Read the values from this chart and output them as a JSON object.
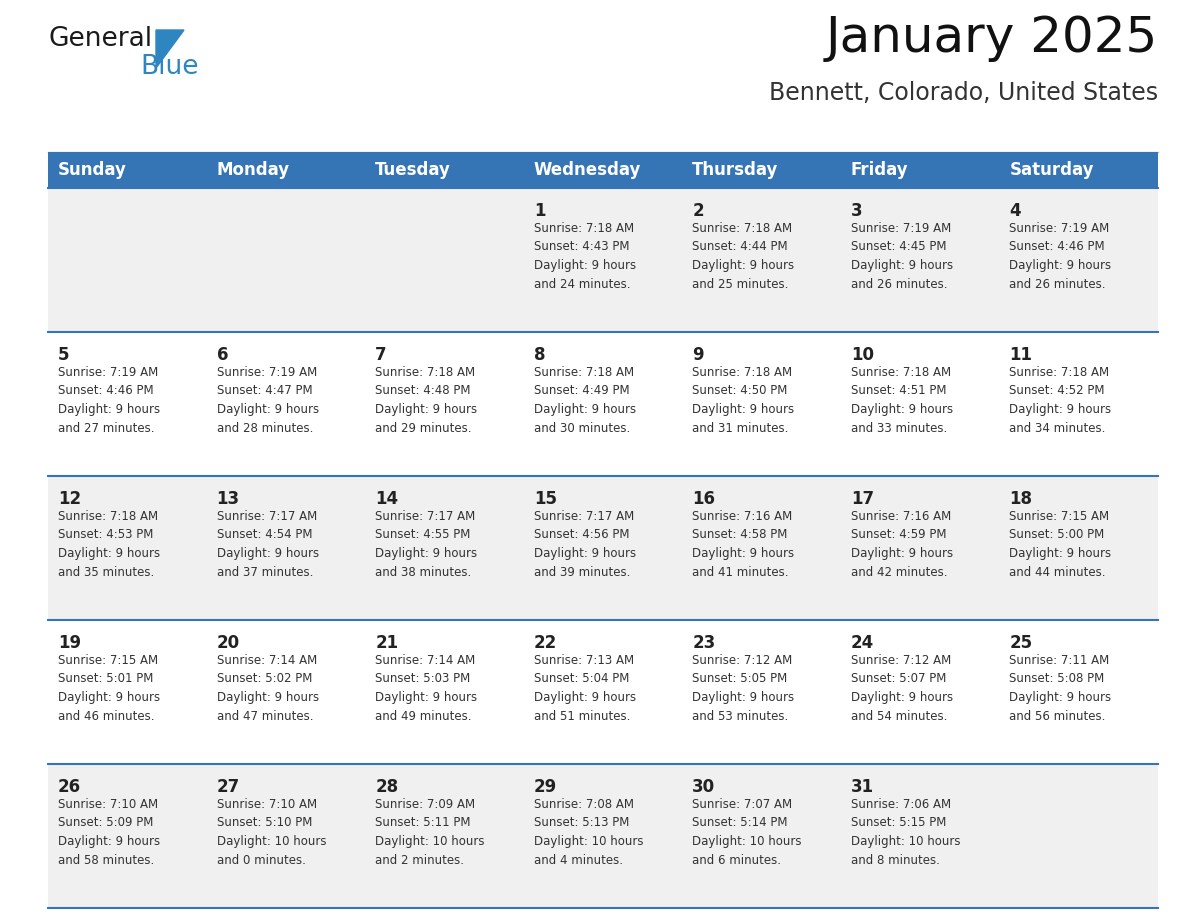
{
  "title": "January 2025",
  "subtitle": "Bennett, Colorado, United States",
  "header_bg_color": "#3575B5",
  "header_text_color": "#FFFFFF",
  "cell_bg_even": "#F0F0F0",
  "cell_bg_odd": "#FFFFFF",
  "cell_text_color": "#333333",
  "day_num_color": "#222222",
  "line_color_blue": "#3575B5",
  "line_color_gray": "#BBBBBB",
  "logo_color1": "#1A1A1A",
  "logo_color2": "#2E86C1",
  "days_of_week": [
    "Sunday",
    "Monday",
    "Tuesday",
    "Wednesday",
    "Thursday",
    "Friday",
    "Saturday"
  ],
  "weeks": [
    [
      {
        "day": 0,
        "info": ""
      },
      {
        "day": 0,
        "info": ""
      },
      {
        "day": 0,
        "info": ""
      },
      {
        "day": 1,
        "info": "Sunrise: 7:18 AM\nSunset: 4:43 PM\nDaylight: 9 hours\nand 24 minutes."
      },
      {
        "day": 2,
        "info": "Sunrise: 7:18 AM\nSunset: 4:44 PM\nDaylight: 9 hours\nand 25 minutes."
      },
      {
        "day": 3,
        "info": "Sunrise: 7:19 AM\nSunset: 4:45 PM\nDaylight: 9 hours\nand 26 minutes."
      },
      {
        "day": 4,
        "info": "Sunrise: 7:19 AM\nSunset: 4:46 PM\nDaylight: 9 hours\nand 26 minutes."
      }
    ],
    [
      {
        "day": 5,
        "info": "Sunrise: 7:19 AM\nSunset: 4:46 PM\nDaylight: 9 hours\nand 27 minutes."
      },
      {
        "day": 6,
        "info": "Sunrise: 7:19 AM\nSunset: 4:47 PM\nDaylight: 9 hours\nand 28 minutes."
      },
      {
        "day": 7,
        "info": "Sunrise: 7:18 AM\nSunset: 4:48 PM\nDaylight: 9 hours\nand 29 minutes."
      },
      {
        "day": 8,
        "info": "Sunrise: 7:18 AM\nSunset: 4:49 PM\nDaylight: 9 hours\nand 30 minutes."
      },
      {
        "day": 9,
        "info": "Sunrise: 7:18 AM\nSunset: 4:50 PM\nDaylight: 9 hours\nand 31 minutes."
      },
      {
        "day": 10,
        "info": "Sunrise: 7:18 AM\nSunset: 4:51 PM\nDaylight: 9 hours\nand 33 minutes."
      },
      {
        "day": 11,
        "info": "Sunrise: 7:18 AM\nSunset: 4:52 PM\nDaylight: 9 hours\nand 34 minutes."
      }
    ],
    [
      {
        "day": 12,
        "info": "Sunrise: 7:18 AM\nSunset: 4:53 PM\nDaylight: 9 hours\nand 35 minutes."
      },
      {
        "day": 13,
        "info": "Sunrise: 7:17 AM\nSunset: 4:54 PM\nDaylight: 9 hours\nand 37 minutes."
      },
      {
        "day": 14,
        "info": "Sunrise: 7:17 AM\nSunset: 4:55 PM\nDaylight: 9 hours\nand 38 minutes."
      },
      {
        "day": 15,
        "info": "Sunrise: 7:17 AM\nSunset: 4:56 PM\nDaylight: 9 hours\nand 39 minutes."
      },
      {
        "day": 16,
        "info": "Sunrise: 7:16 AM\nSunset: 4:58 PM\nDaylight: 9 hours\nand 41 minutes."
      },
      {
        "day": 17,
        "info": "Sunrise: 7:16 AM\nSunset: 4:59 PM\nDaylight: 9 hours\nand 42 minutes."
      },
      {
        "day": 18,
        "info": "Sunrise: 7:15 AM\nSunset: 5:00 PM\nDaylight: 9 hours\nand 44 minutes."
      }
    ],
    [
      {
        "day": 19,
        "info": "Sunrise: 7:15 AM\nSunset: 5:01 PM\nDaylight: 9 hours\nand 46 minutes."
      },
      {
        "day": 20,
        "info": "Sunrise: 7:14 AM\nSunset: 5:02 PM\nDaylight: 9 hours\nand 47 minutes."
      },
      {
        "day": 21,
        "info": "Sunrise: 7:14 AM\nSunset: 5:03 PM\nDaylight: 9 hours\nand 49 minutes."
      },
      {
        "day": 22,
        "info": "Sunrise: 7:13 AM\nSunset: 5:04 PM\nDaylight: 9 hours\nand 51 minutes."
      },
      {
        "day": 23,
        "info": "Sunrise: 7:12 AM\nSunset: 5:05 PM\nDaylight: 9 hours\nand 53 minutes."
      },
      {
        "day": 24,
        "info": "Sunrise: 7:12 AM\nSunset: 5:07 PM\nDaylight: 9 hours\nand 54 minutes."
      },
      {
        "day": 25,
        "info": "Sunrise: 7:11 AM\nSunset: 5:08 PM\nDaylight: 9 hours\nand 56 minutes."
      }
    ],
    [
      {
        "day": 26,
        "info": "Sunrise: 7:10 AM\nSunset: 5:09 PM\nDaylight: 9 hours\nand 58 minutes."
      },
      {
        "day": 27,
        "info": "Sunrise: 7:10 AM\nSunset: 5:10 PM\nDaylight: 10 hours\nand 0 minutes."
      },
      {
        "day": 28,
        "info": "Sunrise: 7:09 AM\nSunset: 5:11 PM\nDaylight: 10 hours\nand 2 minutes."
      },
      {
        "day": 29,
        "info": "Sunrise: 7:08 AM\nSunset: 5:13 PM\nDaylight: 10 hours\nand 4 minutes."
      },
      {
        "day": 30,
        "info": "Sunrise: 7:07 AM\nSunset: 5:14 PM\nDaylight: 10 hours\nand 6 minutes."
      },
      {
        "day": 31,
        "info": "Sunrise: 7:06 AM\nSunset: 5:15 PM\nDaylight: 10 hours\nand 8 minutes."
      },
      {
        "day": 0,
        "info": ""
      }
    ]
  ]
}
